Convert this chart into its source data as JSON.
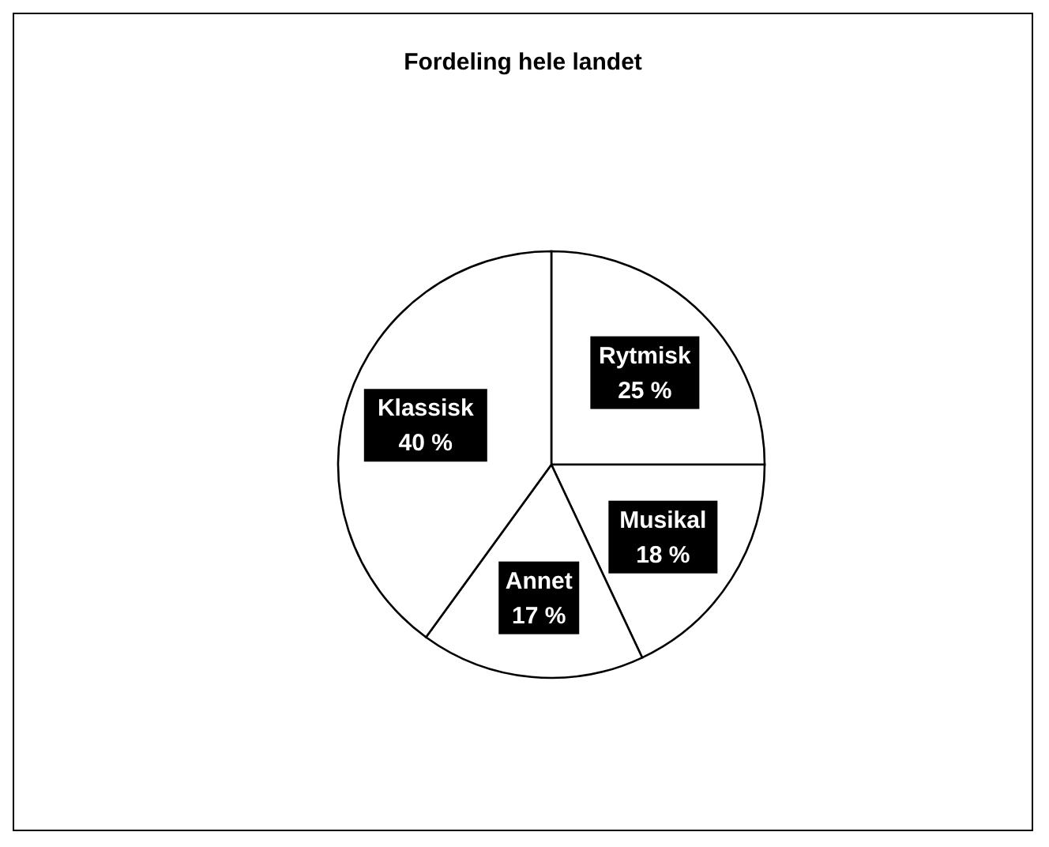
{
  "chart_data": {
    "type": "pie",
    "title": "Fordeling hele landet",
    "categories": [
      "Rytmisk",
      "Musikal",
      "Annet",
      "Klassisk"
    ],
    "values": [
      25,
      18,
      17,
      40
    ],
    "colors": [
      "#ffffff",
      "#ffffff",
      "#ffffff",
      "#ffffff"
    ],
    "value_labels": [
      "25 %",
      "18 %",
      "17 %",
      "40 %"
    ]
  }
}
